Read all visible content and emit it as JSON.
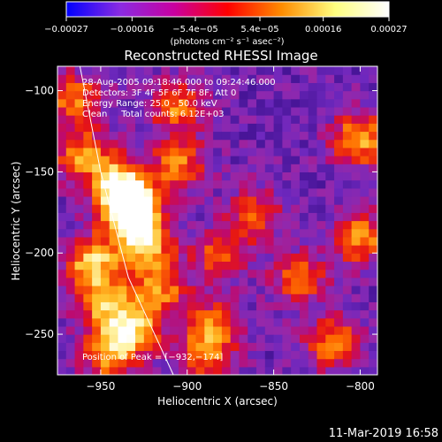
{
  "chart_data": {
    "type": "heatmap",
    "title": "Reconstructed RHESSI Image",
    "xlabel": "Heliocentric X (arcsec)",
    "ylabel": "Heliocentric Y (arcsec)",
    "xlim": [
      -975,
      -790
    ],
    "ylim": [
      -275,
      -85
    ],
    "xticks": [
      -950,
      -900,
      -850,
      -800
    ],
    "xtick_labels": [
      "−950",
      "−900",
      "−850",
      "−800"
    ],
    "yticks": [
      -100,
      -150,
      -200,
      -250
    ],
    "ytick_labels": [
      "−100",
      "−150",
      "−200",
      "−250"
    ],
    "colorbar": {
      "range": [
        -0.00027,
        0.00027
      ],
      "tick_values": [
        -0.00027,
        -0.00016,
        -5.4e-05,
        5.4e-05,
        0.00016,
        0.00027
      ],
      "tick_labels": [
        "−0.00027",
        "−0.00016",
        "−5.4e−05",
        "5.4e−05",
        "0.00016",
        "0.00027"
      ],
      "units": "(photons cm⁻² s⁻¹ asec⁻²)",
      "colors": [
        "#0000ff",
        "#8a2be2",
        "#c800a0",
        "#ff0000",
        "#ff8c00",
        "#ffff80",
        "#ffffff"
      ]
    },
    "annotations": {
      "time": "28-Aug-2005 09:18:46.000 to 09:24:46.000",
      "detectors": "Detectors: 3F 4F 5F 6F 7F 8F, Att 0",
      "energy": "Energy Range: 25.0 - 50.0 keV",
      "method": "Clean     Total counts: 6.12E+03",
      "peak": "Position of Peak = [−932,−174]"
    },
    "peak": [
      -932,
      -174
    ],
    "limb_curve": [
      [
        -962,
        -85
      ],
      [
        -950,
        -150
      ],
      [
        -934,
        -215
      ],
      [
        -908,
        -275
      ]
    ],
    "hot_spots": [
      {
        "x": -932,
        "y": -174,
        "intensity": 1.0
      },
      {
        "x": -938,
        "y": -158,
        "intensity": 0.7
      },
      {
        "x": -925,
        "y": -195,
        "intensity": 0.6
      },
      {
        "x": -955,
        "y": -205,
        "intensity": 0.6
      },
      {
        "x": -948,
        "y": -230,
        "intensity": 0.55
      },
      {
        "x": -930,
        "y": -245,
        "intensity": 0.6
      },
      {
        "x": -945,
        "y": -262,
        "intensity": 0.55
      },
      {
        "x": -960,
        "y": -140,
        "intensity": 0.5
      },
      {
        "x": -905,
        "y": -145,
        "intensity": 0.45
      },
      {
        "x": -905,
        "y": -110,
        "intensity": 0.45
      },
      {
        "x": -880,
        "y": -200,
        "intensity": 0.4
      },
      {
        "x": -885,
        "y": -245,
        "intensity": 0.45
      },
      {
        "x": -800,
        "y": -130,
        "intensity": 0.55
      },
      {
        "x": -800,
        "y": -190,
        "intensity": 0.5
      },
      {
        "x": -815,
        "y": -255,
        "intensity": 0.5
      },
      {
        "x": -835,
        "y": -215,
        "intensity": 0.4
      },
      {
        "x": -860,
        "y": -175,
        "intensity": 0.35
      },
      {
        "x": -965,
        "y": -105,
        "intensity": 0.45
      },
      {
        "x": -890,
        "y": -265,
        "intensity": 0.4
      },
      {
        "x": -915,
        "y": -220,
        "intensity": 0.45
      }
    ]
  },
  "footer": {
    "datestamp": "11-Mar-2019 16:58"
  },
  "colors": {
    "background": "#000000",
    "axis": "#ffffff",
    "limb": "#ffffff"
  }
}
